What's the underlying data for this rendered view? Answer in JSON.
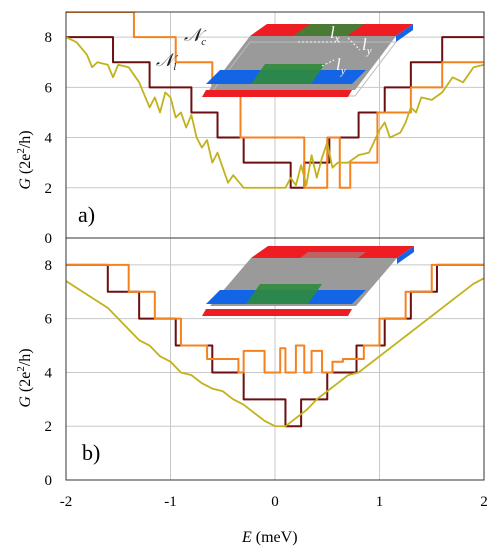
{
  "figure": {
    "xlabel_main": "E",
    "xlabel_unit": "(meV)",
    "ylabel_main": "G",
    "ylabel_unit": "(2e",
    "ylabel_sup": "2",
    "ylabel_tail": "/h)",
    "colors": {
      "dark": "#6b0f12",
      "orange": "#f5821f",
      "yellow": "#c2b21c",
      "grid": "#c8c8c8",
      "red": "#ee1d23",
      "blue": "#1464e6",
      "green": "#2e8b3a",
      "gray": "#9a9a9a"
    }
  },
  "chart_data": [
    {
      "type": "line",
      "panel_label": "a)",
      "xlabel": "E (meV)",
      "ylabel": "G (2e²/h)",
      "xlim": [
        -2,
        2
      ],
      "ylim": [
        0,
        9
      ],
      "xticks": [
        "-2",
        "-1",
        "0",
        "1",
        "2"
      ],
      "yticks": [
        "0",
        "2",
        "4",
        "6",
        "8"
      ],
      "grid": true,
      "annotations": {
        "nc": "c",
        "nl": "l",
        "lx": "x",
        "ly1": "y",
        "ly2": "y"
      },
      "series": [
        {
          "name": "Nl",
          "color": "dark",
          "step": true,
          "x": [
            -2,
            -1.55,
            -1.2,
            -0.8,
            -0.55,
            -0.3,
            0.15,
            0.28,
            0.52,
            0.8,
            1.05,
            1.3,
            1.6,
            2
          ],
          "y": [
            8,
            7,
            6,
            5,
            4,
            3,
            2,
            3,
            4,
            5,
            6,
            7,
            8,
            8
          ]
        },
        {
          "name": "Nc",
          "color": "orange",
          "step": true,
          "x": [
            -2,
            -1.35,
            -0.95,
            -0.6,
            -0.33,
            0.28,
            0.5,
            0.62,
            0.72,
            0.98,
            1.2,
            1.3,
            1.48,
            1.6,
            1.73,
            2
          ],
          "y": [
            9,
            8,
            7,
            6,
            4,
            2,
            4,
            2,
            3,
            5,
            5,
            6,
            6,
            7,
            7,
            7
          ]
        },
        {
          "name": "",
          "color": "yellow",
          "step": false,
          "x": [
            -2,
            -1.9,
            -1.8,
            -1.75,
            -1.7,
            -1.6,
            -1.55,
            -1.5,
            -1.4,
            -1.3,
            -1.2,
            -1.15,
            -1.1,
            -1.05,
            -1.0,
            -0.95,
            -0.9,
            -0.85,
            -0.8,
            -0.75,
            -0.7,
            -0.65,
            -0.6,
            -0.55,
            -0.5,
            -0.45,
            -0.4,
            -0.3,
            -0.2,
            -0.1,
            0,
            0.1,
            0.15,
            0.2,
            0.25,
            0.3,
            0.35,
            0.4,
            0.45,
            0.5,
            0.55,
            0.6,
            0.7,
            0.8,
            0.9,
            1.0,
            1.05,
            1.1,
            1.2,
            1.25,
            1.3,
            1.35,
            1.4,
            1.5,
            1.6,
            1.7,
            1.8,
            1.9,
            2
          ],
          "y": [
            8,
            7.8,
            7.3,
            6.8,
            7.0,
            6.9,
            6.4,
            6.9,
            6.8,
            6.2,
            5.2,
            5.6,
            5.0,
            5.8,
            5.6,
            4.8,
            5.0,
            4.4,
            4.9,
            4.0,
            3.6,
            3.9,
            3.0,
            3.4,
            2.8,
            2.2,
            2.5,
            2.0,
            2.0,
            2.0,
            2.0,
            2.0,
            2.4,
            2.1,
            2.9,
            2.1,
            3.3,
            2.4,
            3.2,
            3.8,
            2.8,
            3.0,
            3.0,
            3.3,
            3.4,
            4.3,
            4.6,
            4.0,
            4.2,
            4.6,
            5.2,
            5.0,
            5.6,
            5.5,
            5.8,
            6.4,
            6.2,
            6.8,
            6.9
          ]
        }
      ]
    },
    {
      "type": "line",
      "panel_label": "b)",
      "xlabel": "E (meV)",
      "ylabel": "G (2e²/h)",
      "xlim": [
        -2,
        2
      ],
      "ylim": [
        0,
        9
      ],
      "xticks": [
        "-2",
        "-1",
        "0",
        "1",
        "2"
      ],
      "yticks": [
        "0",
        "2",
        "4",
        "6",
        "8"
      ],
      "grid": true,
      "series": [
        {
          "name": "",
          "color": "dark",
          "step": true,
          "x": [
            -2,
            -1.6,
            -1.3,
            -0.95,
            -0.6,
            -0.3,
            0.1,
            0.25,
            0.5,
            0.78,
            1.05,
            1.3,
            1.55,
            2
          ],
          "y": [
            8,
            7,
            6,
            5,
            4,
            3,
            2,
            3,
            4,
            5,
            6,
            7,
            8,
            8
          ]
        },
        {
          "name": "",
          "color": "orange",
          "step": true,
          "x": [
            -2,
            -1.4,
            -1.15,
            -0.9,
            -0.65,
            -0.35,
            -0.3,
            -0.1,
            0.05,
            0.1,
            0.2,
            0.28,
            0.35,
            0.45,
            0.55,
            0.65,
            0.85,
            1.0,
            1.25,
            1.5,
            2
          ],
          "y": [
            8,
            7,
            6,
            5,
            4.5,
            4,
            4.8,
            4,
            4.9,
            4,
            5,
            4,
            4.8,
            4,
            4.4,
            4.5,
            5,
            6,
            7,
            8,
            8
          ]
        },
        {
          "name": "",
          "color": "yellow",
          "step": false,
          "x": [
            -2,
            -1.8,
            -1.6,
            -1.45,
            -1.3,
            -1.2,
            -1.1,
            -1.0,
            -0.9,
            -0.8,
            -0.7,
            -0.6,
            -0.5,
            -0.4,
            -0.3,
            -0.2,
            -0.1,
            0,
            0.1,
            0.2,
            0.3,
            0.4,
            0.5,
            0.6,
            0.7,
            0.8,
            0.9,
            1.0,
            1.1,
            1.2,
            1.3,
            1.4,
            1.5,
            1.6,
            1.7,
            1.8,
            1.9,
            2
          ],
          "y": [
            7.4,
            6.9,
            6.4,
            5.8,
            5.2,
            5.0,
            4.6,
            4.4,
            4.0,
            3.9,
            3.6,
            3.4,
            3.3,
            3.0,
            2.8,
            2.5,
            2.2,
            2.0,
            2.0,
            2.3,
            2.6,
            3.0,
            3.3,
            3.6,
            3.9,
            4.0,
            4.3,
            4.6,
            4.9,
            5.2,
            5.5,
            5.8,
            6.1,
            6.4,
            6.7,
            7.0,
            7.3,
            7.5
          ]
        }
      ]
    }
  ]
}
